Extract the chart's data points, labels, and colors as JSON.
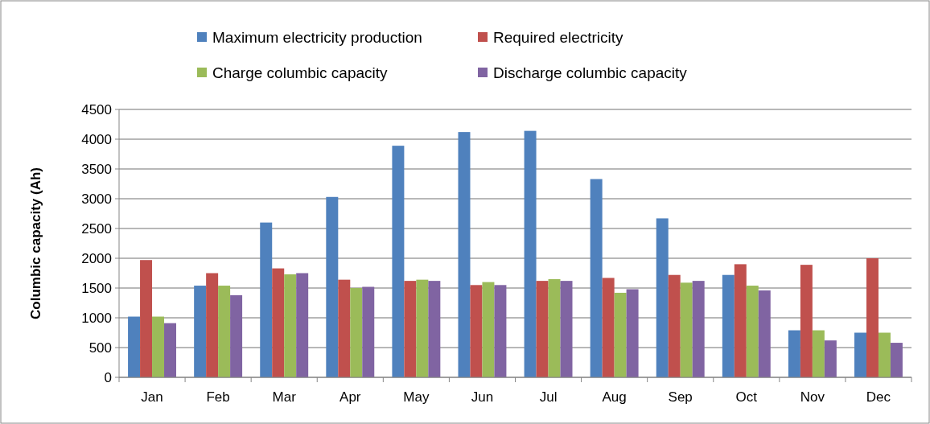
{
  "chart_data": {
    "type": "bar",
    "ylabel": "Columbic capacity (Ah)",
    "categories": [
      "Jan",
      "Feb",
      "Mar",
      "Apr",
      "May",
      "Jun",
      "Jul",
      "Aug",
      "Sep",
      "Oct",
      "Nov",
      "Dec"
    ],
    "series": [
      {
        "name": "Maximum electricity production",
        "color": "#4f81bd",
        "values": [
          1020,
          1540,
          2600,
          3030,
          3890,
          4120,
          4140,
          3330,
          2670,
          1720,
          790,
          750
        ]
      },
      {
        "name": "Required electricity",
        "color": "#c0504d",
        "values": [
          1970,
          1750,
          1830,
          1640,
          1620,
          1550,
          1620,
          1670,
          1720,
          1900,
          1890,
          2000
        ]
      },
      {
        "name": "Charge columbic capacity",
        "color": "#9bbb59",
        "values": [
          1020,
          1540,
          1730,
          1500,
          1640,
          1600,
          1650,
          1420,
          1590,
          1540,
          790,
          750
        ]
      },
      {
        "name": "Discharge columbic capacity",
        "color": "#8064a2",
        "values": [
          910,
          1380,
          1750,
          1520,
          1620,
          1550,
          1620,
          1480,
          1620,
          1460,
          620,
          580
        ]
      }
    ],
    "ylim": [
      0,
      4500
    ],
    "yticks": [
      0,
      500,
      1000,
      1500,
      2000,
      2500,
      3000,
      3500,
      4000,
      4500
    ],
    "grid": "y",
    "legend": "top"
  }
}
